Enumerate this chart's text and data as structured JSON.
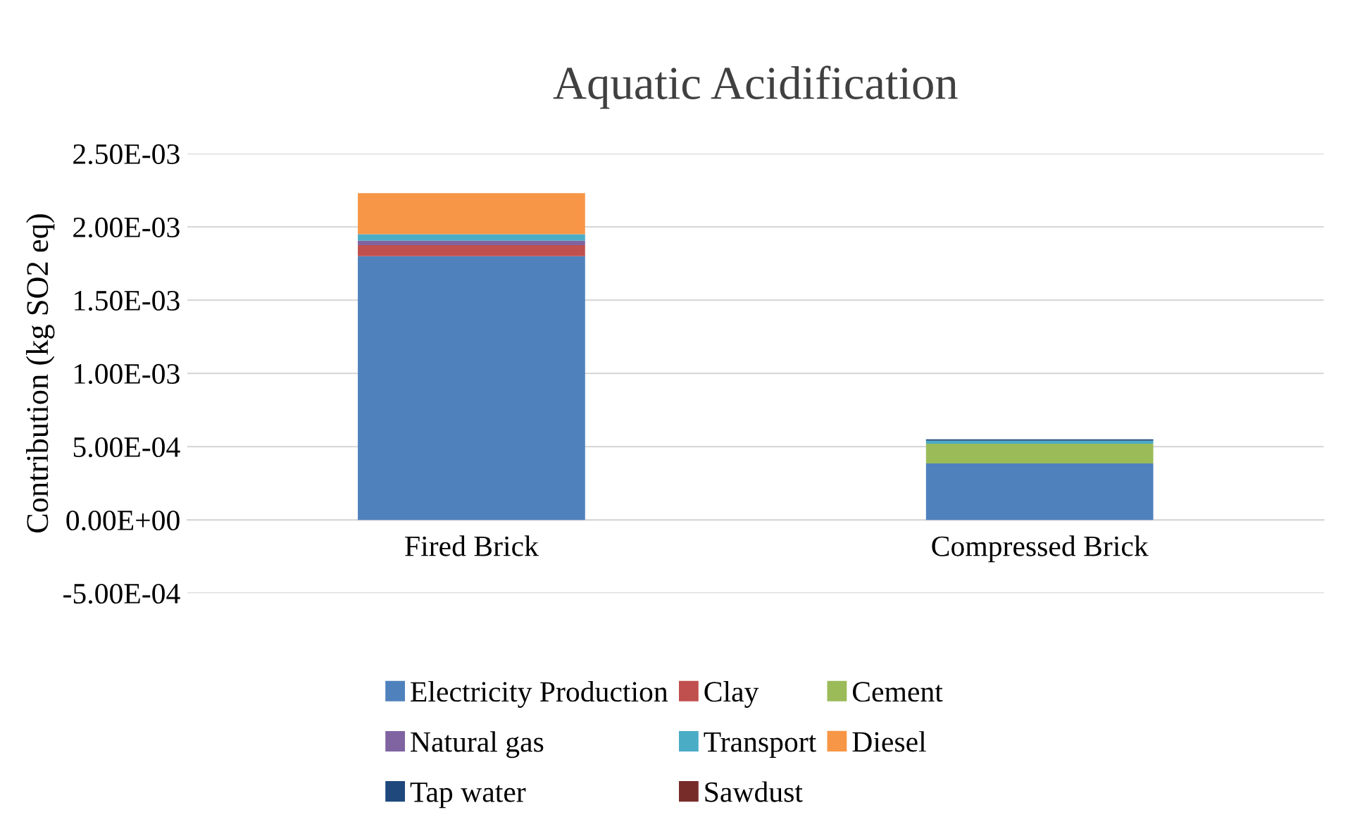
{
  "chart_data": {
    "type": "bar",
    "stacked": true,
    "title": "Aquatic Acidification",
    "ylabel": "Contribution (kg SO2 eq)",
    "categories": [
      "Fired Brick",
      "Compressed Brick"
    ],
    "series": [
      {
        "name": "Electricity Production",
        "color": "#4f81bd",
        "values": [
          0.0018,
          0.000385
        ]
      },
      {
        "name": "Clay",
        "color": "#c0504d",
        "values": [
          7.5e-05,
          0
        ]
      },
      {
        "name": "Cement",
        "color": "#9bbb59",
        "values": [
          0,
          0.000135
        ]
      },
      {
        "name": "Natural gas",
        "color": "#8064a2",
        "values": [
          3e-05,
          0
        ]
      },
      {
        "name": "Transport",
        "color": "#4bacc6",
        "values": [
          4.5e-05,
          2e-05
        ]
      },
      {
        "name": "Diesel",
        "color": "#f79646",
        "values": [
          0.00028,
          0
        ]
      },
      {
        "name": "Tap water",
        "color": "#1f497d",
        "values": [
          0,
          1e-05
        ]
      },
      {
        "name": "Sawdust",
        "color": "#772c2a",
        "values": [
          0,
          0
        ]
      }
    ],
    "ylim": [
      -0.0005,
      0.0025
    ],
    "yticks": [
      {
        "value": -0.0005,
        "label": "-5.00E-04"
      },
      {
        "value": 0,
        "label": "0.00E+00"
      },
      {
        "value": 0.0005,
        "label": "5.00E-04"
      },
      {
        "value": 0.001,
        "label": "1.00E-03"
      },
      {
        "value": 0.0015,
        "label": "1.50E-03"
      },
      {
        "value": 0.002,
        "label": "2.00E-03"
      },
      {
        "value": 0.0025,
        "label": "2.50E-03"
      }
    ],
    "grid": "y",
    "legend": "bottom"
  }
}
